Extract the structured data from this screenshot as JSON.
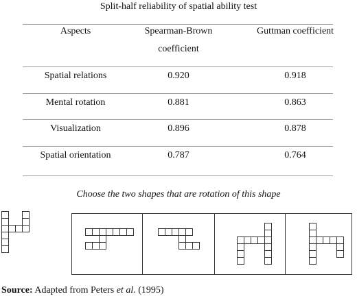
{
  "title": "Split-half reliability of spatial ability test",
  "table": {
    "header": [
      "Aspects",
      "Spearman-Brown coefficient",
      "Guttman coefficient"
    ],
    "rows": [
      [
        "Spatial relations",
        "0.920",
        "0.918"
      ],
      [
        "Mental rotation",
        "0.881",
        "0.863"
      ],
      [
        "Visualization",
        "0.896",
        "0.878"
      ],
      [
        "Spatial orientation",
        "0.787",
        "0.764"
      ]
    ]
  },
  "figure": {
    "caption": "Choose the two shapes that are rotation of this shape"
  },
  "source": {
    "label": "Source:",
    "before": " Adapted from Peters ",
    "italic": "et al.",
    "after": " (1995)"
  }
}
